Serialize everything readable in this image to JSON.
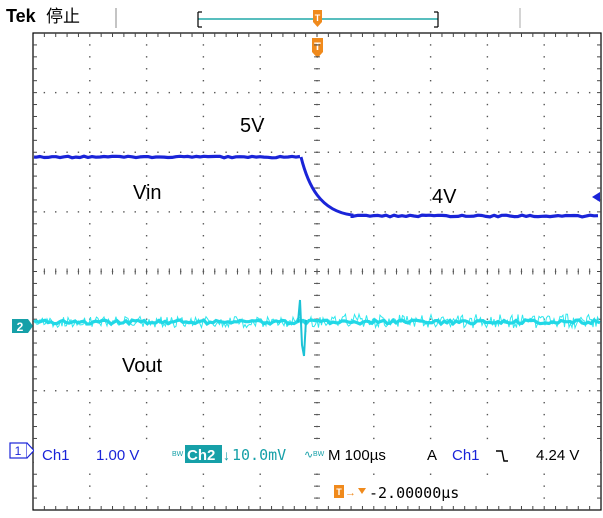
{
  "header": {
    "brand": "Tek",
    "status": "停止"
  },
  "markers": {
    "trigger_marker": "T",
    "ch2_marker": "2",
    "ch1_marker": "1"
  },
  "annotations": {
    "label_5v": "5V",
    "label_4v": "4V",
    "label_vin": "Vin",
    "label_vout": "Vout"
  },
  "readout": {
    "ch1_name": "Ch1",
    "ch1_scale": "1.00 V",
    "ch2_bw": "BW",
    "ch2_name": "Ch2",
    "ch2_scale": "10.0mV",
    "ch2_coupling": "BW",
    "timebase": "M 100µs",
    "trigger_mode": "A",
    "trigger_source": "Ch1",
    "trigger_level": "4.24 V",
    "trigger_offset": "-2.00000µs"
  },
  "colors": {
    "ch1": "#1a24d8",
    "ch2": "#2ee8ee",
    "trigger": "#f08a1c",
    "grid": "#606060",
    "ch2_label_bg": "#16a0a8"
  }
}
